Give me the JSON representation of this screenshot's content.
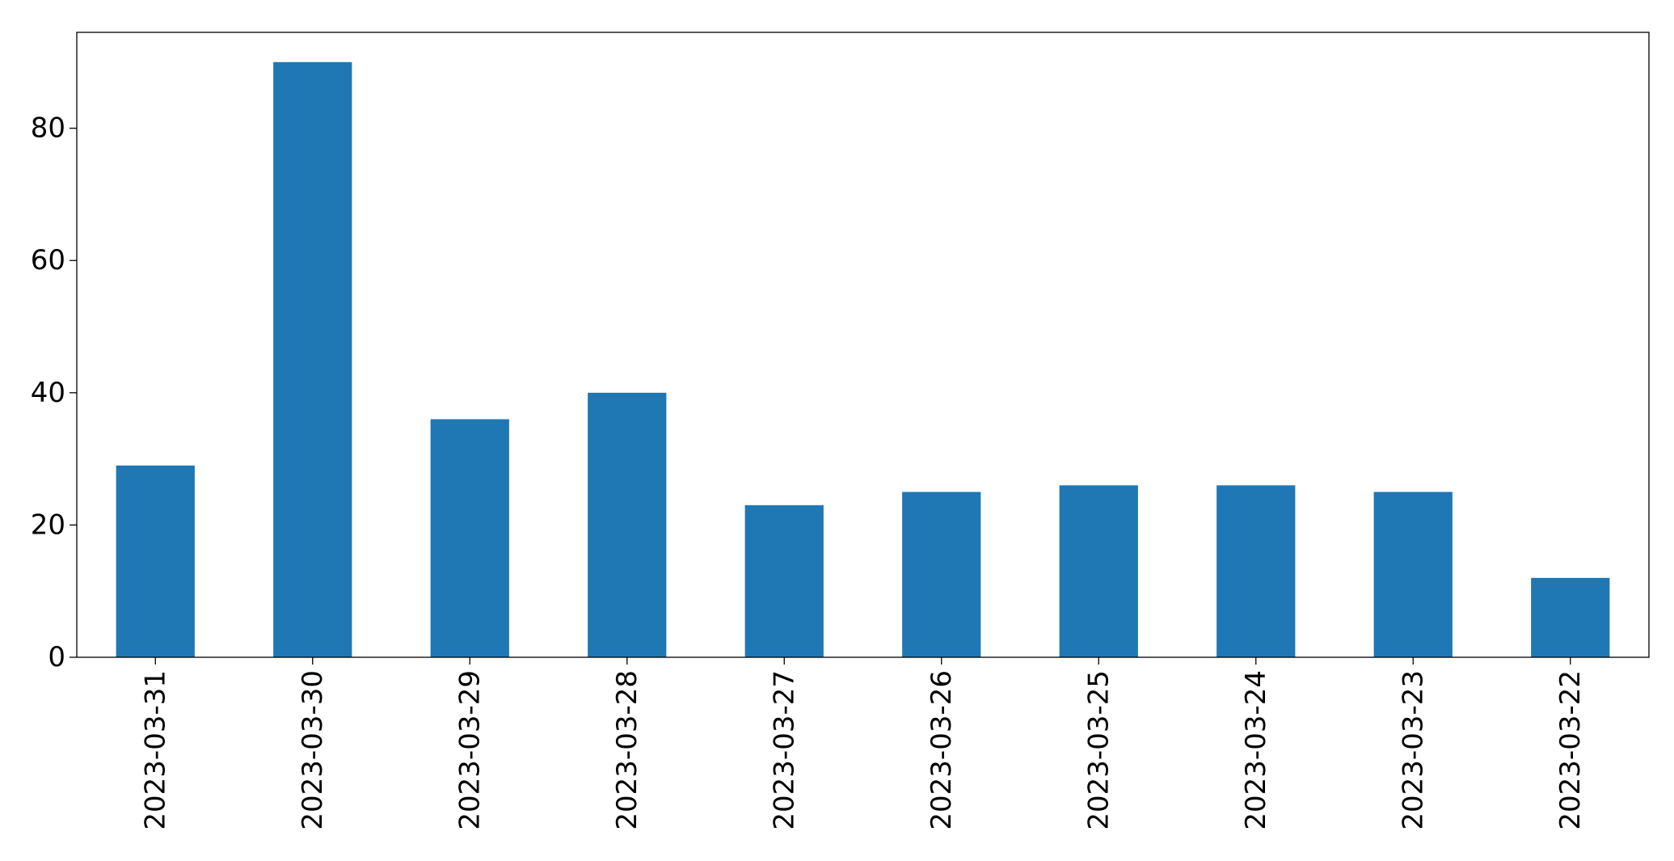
{
  "chart_data": {
    "type": "bar",
    "title": "",
    "xlabel": "",
    "ylabel": "",
    "categories": [
      "2023-03-31",
      "2023-03-30",
      "2023-03-29",
      "2023-03-28",
      "2023-03-27",
      "2023-03-26",
      "2023-03-25",
      "2023-03-24",
      "2023-03-23",
      "2023-03-22"
    ],
    "values": [
      29,
      90,
      36,
      40,
      23,
      25,
      26,
      26,
      25,
      12
    ],
    "ylim": [
      0,
      94.5
    ],
    "yticks": [
      0,
      20,
      40,
      60,
      80
    ],
    "grid": false,
    "legend": "none",
    "colors": {
      "bar": "#1f77b4",
      "axes": "#000000",
      "background": "#ffffff"
    }
  }
}
